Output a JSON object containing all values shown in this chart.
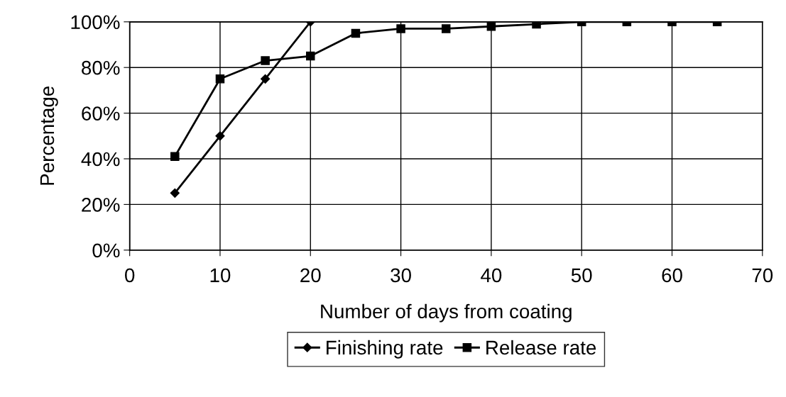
{
  "chart_data": {
    "type": "line",
    "xlabel": "Number of days from coating",
    "ylabel": "Percentage",
    "x": [
      5,
      10,
      15,
      20,
      25,
      30,
      35,
      40,
      45,
      50,
      55,
      60,
      65
    ],
    "series": [
      {
        "name": "Finishing rate",
        "color": "#000000",
        "marker": "diamond",
        "x": [
          5,
          10,
          15,
          20
        ],
        "values": [
          25,
          50,
          75,
          100
        ]
      },
      {
        "name": "Release rate",
        "color": "#000000",
        "marker": "square",
        "values": [
          41,
          75,
          83,
          85,
          95,
          97,
          97,
          98,
          99,
          100,
          100,
          100,
          100
        ]
      }
    ],
    "xlim": [
      0,
      70
    ],
    "xticks": [
      0,
      10,
      20,
      30,
      40,
      50,
      60,
      70
    ],
    "ylim": [
      0,
      100
    ],
    "yticks": [
      {
        "value": 0,
        "label": "0%"
      },
      {
        "value": 20,
        "label": "20%"
      },
      {
        "value": 40,
        "label": "40%"
      },
      {
        "value": 60,
        "label": "60%"
      },
      {
        "value": 80,
        "label": "80%"
      },
      {
        "value": 100,
        "label": "100%"
      }
    ],
    "grid": true,
    "legend": "bottom",
    "line_style": "solid"
  }
}
